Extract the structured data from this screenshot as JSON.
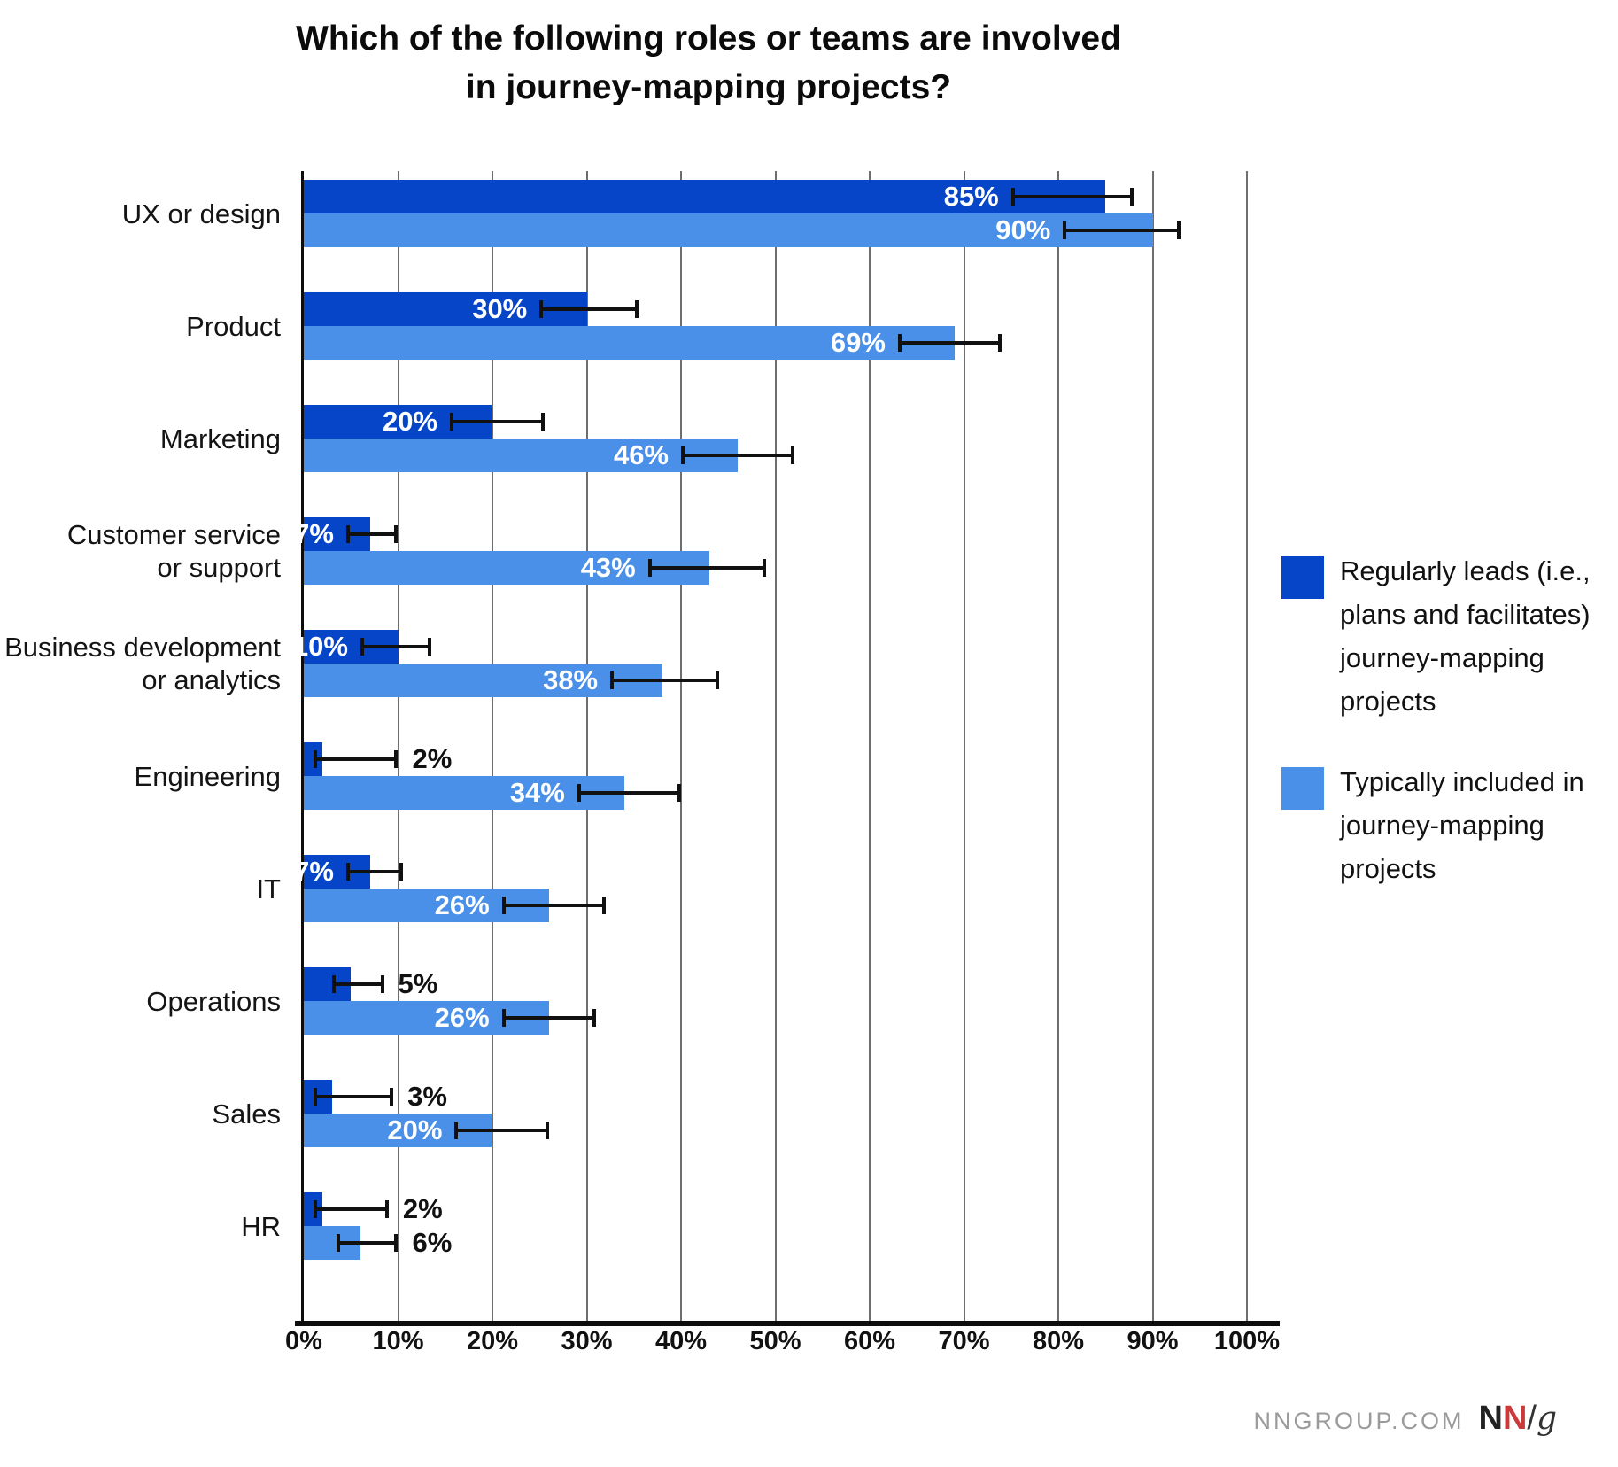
{
  "title": {
    "line1": "Which of the following roles or teams are involved",
    "line2": "in journey-mapping projects?"
  },
  "colors": {
    "dark_blue": "#0645C8",
    "light_blue": "#4A90E8",
    "grid": "#6e6e6e",
    "axis": "#0d0d0d",
    "error_bar": "#111111",
    "value_label_inside": "#ffffff",
    "value_label_outside": "#111111",
    "footer_gray": "#9b9b9b",
    "logo_red": "#CA3A3A"
  },
  "legend": {
    "items": [
      {
        "label": "Regularly leads (i.e., plans and facilitates) journey-mapping projects",
        "lines": [
          "Regularly leads (i.e.,",
          "plans and facilitates)",
          "journey-mapping",
          "projects"
        ],
        "color": "#0645C8"
      },
      {
        "label": "Typically included in journey-mapping projects",
        "lines": [
          "Typically included in",
          "journey-mapping",
          "projects"
        ],
        "color": "#4A90E8"
      }
    ]
  },
  "footer": {
    "site": "NNGROUP.COM",
    "logo": {
      "n1": "N",
      "n2": "N",
      "slash": "/",
      "g": "g"
    }
  },
  "chart_data": {
    "type": "bar",
    "orientation": "horizontal",
    "title": "Which of the following roles or teams are involved in journey-mapping projects?",
    "categories": [
      "UX or design",
      "Product",
      "Marketing",
      "Customer service or support",
      "Business development or analytics",
      "Engineering",
      "IT",
      "Operations",
      "Sales",
      "HR"
    ],
    "category_lines": [
      [
        "UX or design"
      ],
      [
        "Product"
      ],
      [
        "Marketing"
      ],
      [
        "Customer service",
        "or support"
      ],
      [
        "Business development",
        "or analytics"
      ],
      [
        "Engineering"
      ],
      [
        "IT"
      ],
      [
        "Operations"
      ],
      [
        "Sales"
      ],
      [
        "HR"
      ]
    ],
    "xlim": [
      0,
      100
    ],
    "xtick_labels": [
      "0%",
      "10%",
      "20%",
      "30%",
      "40%",
      "50%",
      "60%",
      "70%",
      "80%",
      "90%",
      "100%"
    ],
    "grid": true,
    "legend_position": "right",
    "error_bars": true,
    "series": [
      {
        "name": "Regularly leads (i.e., plans and facilitates) journey-mapping projects",
        "color": "#0645C8",
        "values": [
          85,
          30,
          20,
          7,
          10,
          2,
          7,
          5,
          3,
          2
        ],
        "value_labels": [
          "85%",
          "30%",
          "20%",
          "7%",
          "10%",
          "2%",
          "7%",
          "5%",
          "3%",
          "2%"
        ],
        "err_low": [
          75,
          25,
          15.5,
          4.5,
          6,
          1,
          4.5,
          3,
          1,
          1
        ],
        "err_high": [
          88,
          35.5,
          25.5,
          10,
          13.5,
          10,
          10.5,
          8.5,
          9.5,
          9
        ],
        "label_inside": [
          true,
          true,
          true,
          true,
          true,
          false,
          true,
          false,
          false,
          false
        ]
      },
      {
        "name": "Typically included in journey-mapping projects",
        "color": "#4A90E8",
        "values": [
          90,
          69,
          46,
          43,
          38,
          34,
          26,
          26,
          20,
          6
        ],
        "value_labels": [
          "90%",
          "69%",
          "46%",
          "43%",
          "38%",
          "34%",
          "26%",
          "26%",
          "20%",
          "6%"
        ],
        "err_low": [
          80.5,
          63,
          40,
          36.5,
          32.5,
          29,
          21,
          21,
          16,
          3.5
        ],
        "err_high": [
          93,
          74,
          52,
          49,
          44,
          40,
          32,
          31,
          26,
          10
        ],
        "label_inside": [
          true,
          true,
          true,
          true,
          true,
          true,
          true,
          true,
          true,
          false
        ]
      }
    ]
  }
}
